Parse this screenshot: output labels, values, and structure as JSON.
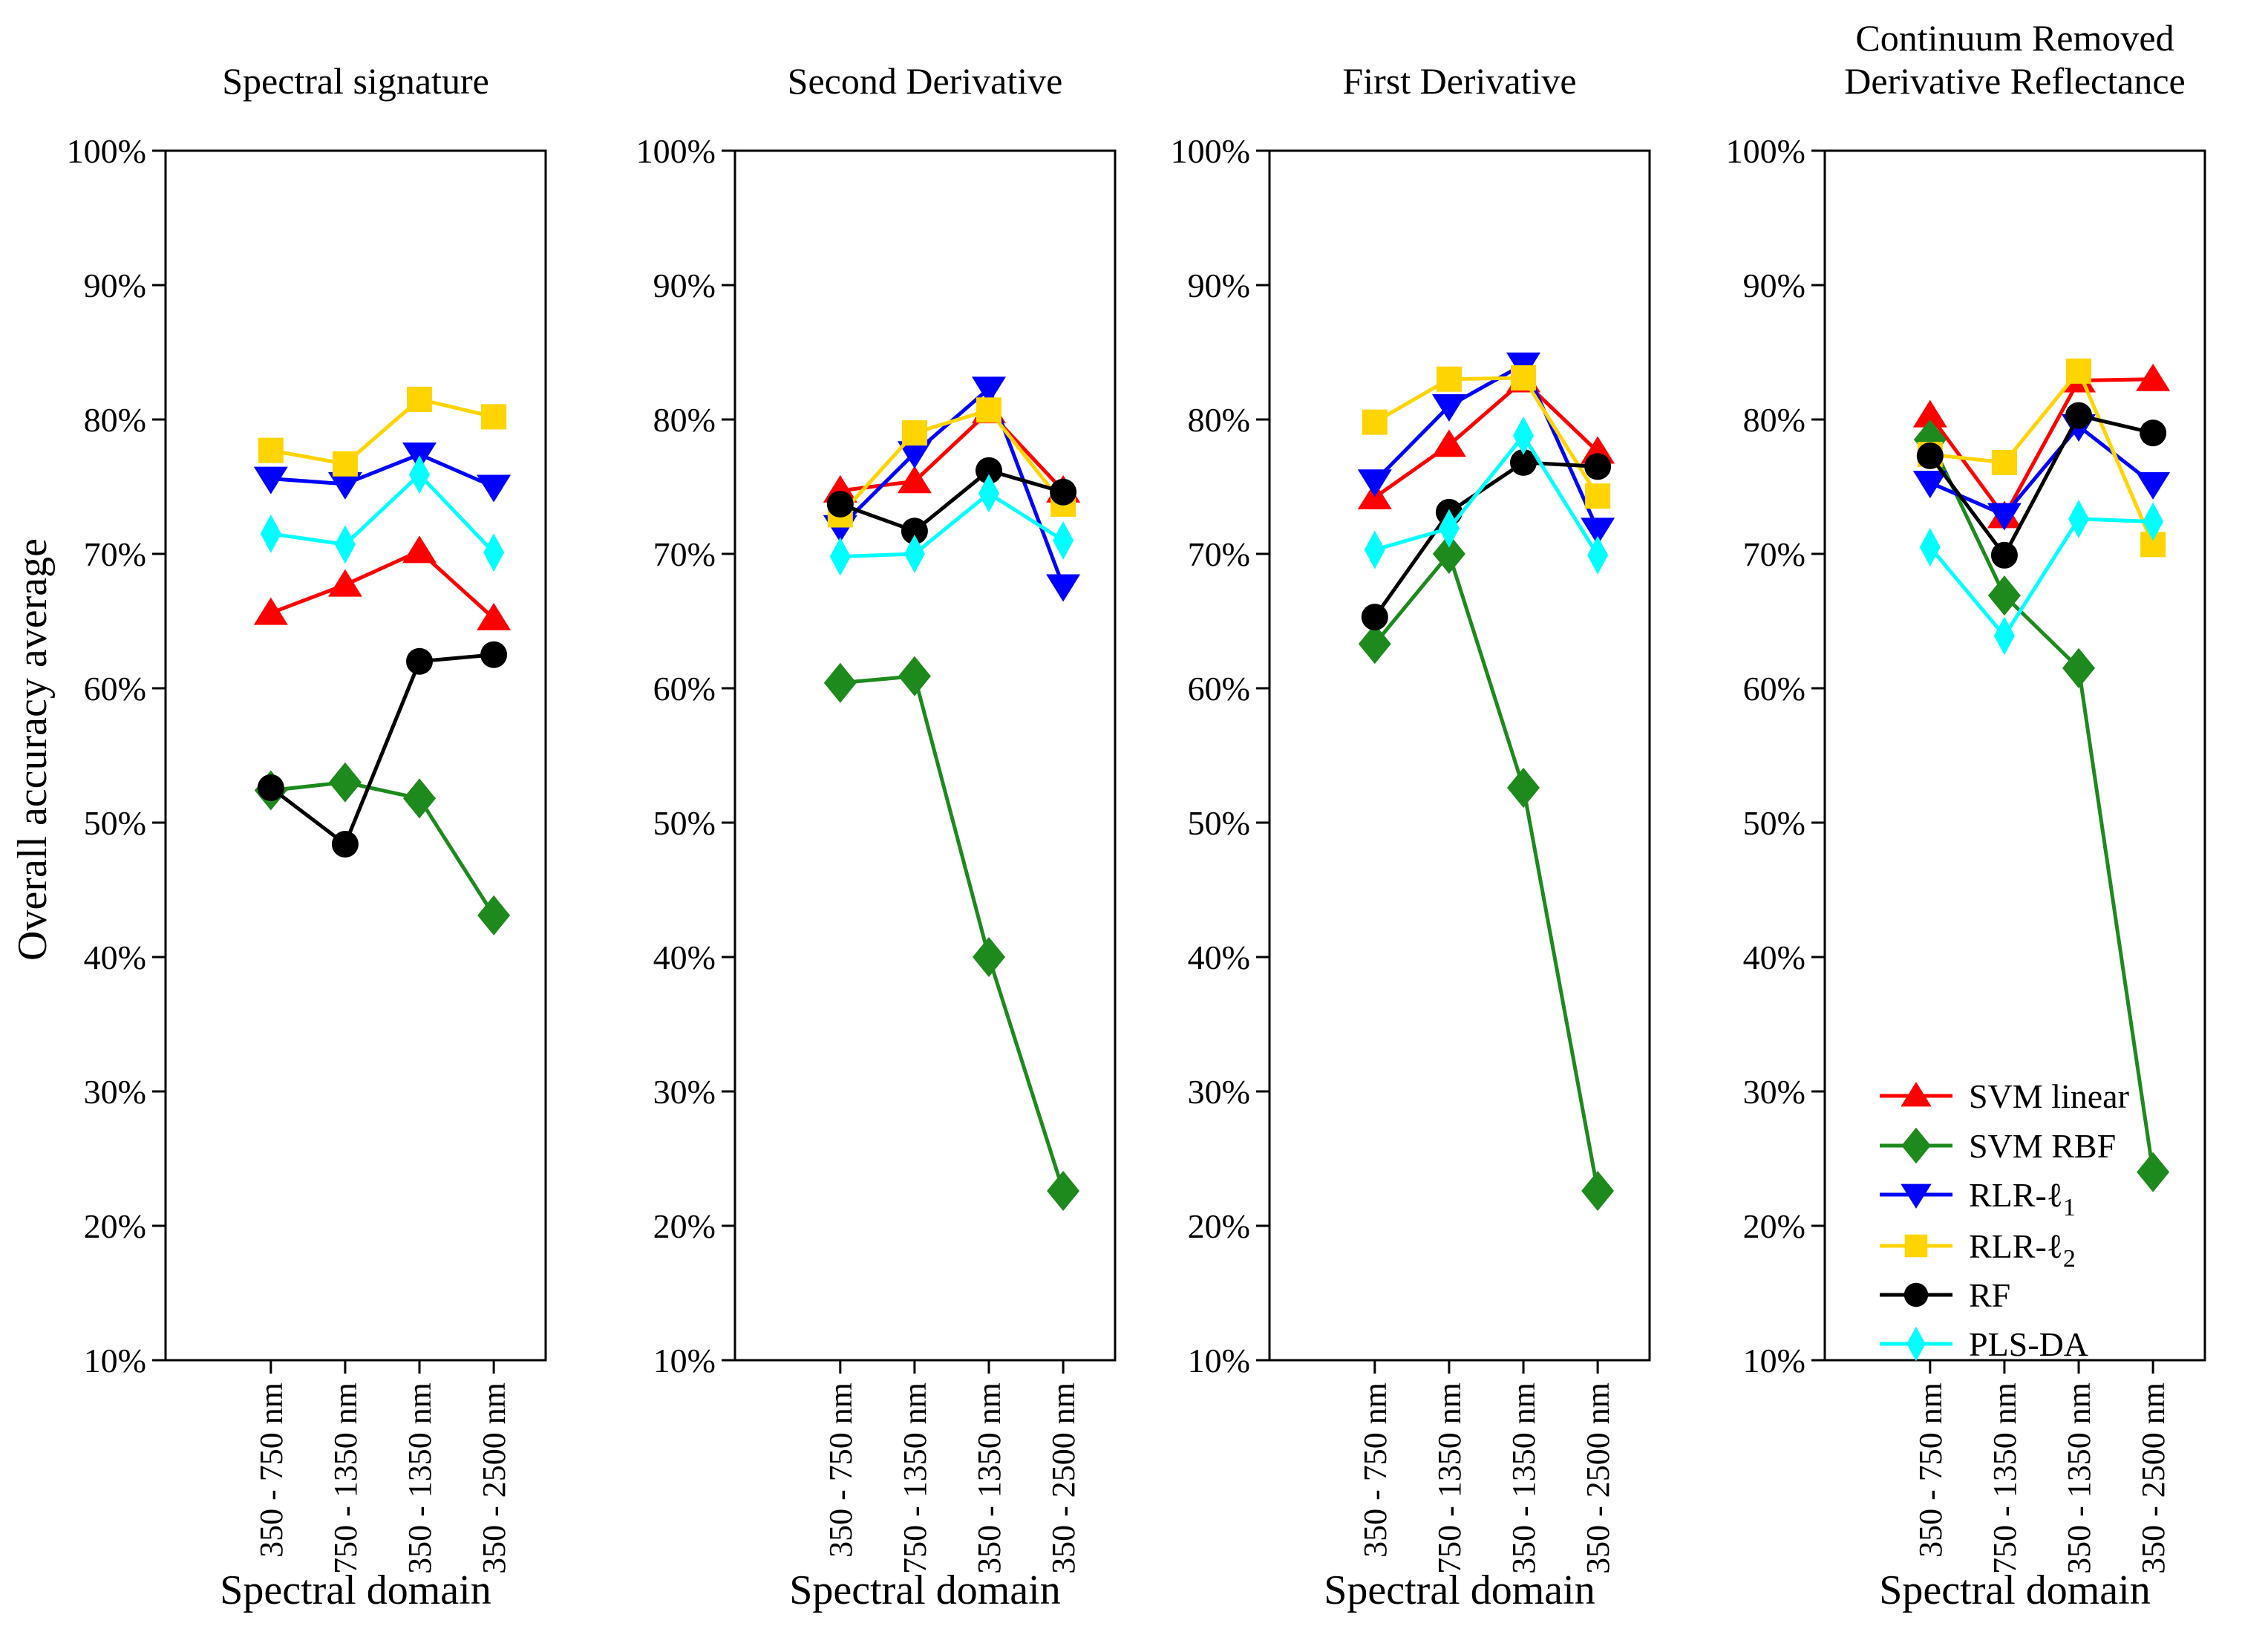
{
  "figure": {
    "ylabel": "Overall accuracy average",
    "xlabel": "Spectral domain",
    "background": "#ffffff",
    "axis_color": "#000000"
  },
  "categories": [
    "350 - 750 nm",
    "750 - 1350 nm",
    "350 - 1350 nm",
    "350 - 2500 nm"
  ],
  "y_ticks": [
    "100%",
    "90%",
    "80%",
    "70%",
    "60%",
    "50%",
    "40%",
    "30%",
    "20%",
    "10%"
  ],
  "series_meta": [
    {
      "name": "SVM linear",
      "color": "#ff0000",
      "marker": "triangle-up"
    },
    {
      "name": "SVM RBF",
      "color": "#1e8a1e",
      "marker": "diamond"
    },
    {
      "name": "RLR-ℓ1",
      "color": "#0000ff",
      "marker": "triangle-down"
    },
    {
      "name": "RLR-ℓ2",
      "color": "#ffd400",
      "marker": "square"
    },
    {
      "name": "RF",
      "color": "#000000",
      "marker": "circle"
    },
    {
      "name": "PLS-DA",
      "color": "#00ffff",
      "marker": "thin-diamond"
    }
  ],
  "legend": {
    "location": "lower right panel",
    "entries": [
      "SVM linear",
      "SVM RBF",
      "RLR-ℓ1",
      "RLR-ℓ2",
      "RF",
      "PLS-DA"
    ]
  },
  "chart_data": [
    {
      "type": "line",
      "title": "Spectral signature",
      "xlabel": "Spectral domain",
      "ylabel": "Overall accuracy average",
      "ylim": [
        10,
        100
      ],
      "categories": [
        "350 - 750 nm",
        "750 - 1350 nm",
        "350 - 1350 nm",
        "350 - 2500 nm"
      ],
      "series": [
        {
          "name": "SVM linear",
          "values": [
            65.6,
            67.7,
            70.2,
            65.2
          ]
        },
        {
          "name": "SVM RBF",
          "values": [
            52.4,
            53.0,
            51.8,
            43.1
          ]
        },
        {
          "name": "RLR-ℓ1",
          "values": [
            75.6,
            75.2,
            77.4,
            75.0
          ]
        },
        {
          "name": "RLR-ℓ2",
          "values": [
            77.7,
            76.7,
            81.5,
            80.2
          ]
        },
        {
          "name": "RF",
          "values": [
            52.6,
            48.4,
            62.0,
            62.5
          ]
        },
        {
          "name": "PLS-DA",
          "values": [
            71.5,
            70.7,
            75.9,
            70.1
          ]
        }
      ]
    },
    {
      "type": "line",
      "title": "Second Derivative",
      "xlabel": "Spectral domain",
      "ylim": [
        10,
        100
      ],
      "categories": [
        "350 - 750 nm",
        "750 - 1350 nm",
        "350 - 1350 nm",
        "350 - 2500 nm"
      ],
      "series": [
        {
          "name": "SVM linear",
          "values": [
            74.7,
            75.4,
            80.6,
            74.7
          ]
        },
        {
          "name": "SVM RBF",
          "values": [
            60.4,
            60.9,
            40.0,
            22.6
          ]
        },
        {
          "name": "RLR-ℓ1",
          "values": [
            72.0,
            77.5,
            82.3,
            67.6
          ]
        },
        {
          "name": "RLR-ℓ2",
          "values": [
            72.9,
            79.0,
            80.7,
            73.7
          ]
        },
        {
          "name": "RF",
          "values": [
            73.7,
            71.7,
            76.2,
            74.6
          ]
        },
        {
          "name": "PLS-DA",
          "values": [
            69.8,
            70.0,
            74.5,
            71.0
          ]
        }
      ]
    },
    {
      "type": "line",
      "title": "First Derivative",
      "xlabel": "Spectral domain",
      "ylim": [
        10,
        100
      ],
      "categories": [
        "350 - 750 nm",
        "750 - 1350 nm",
        "350 - 1350 nm",
        "350 - 2500 nm"
      ],
      "series": [
        {
          "name": "SVM linear",
          "values": [
            74.2,
            78.1,
            82.9,
            77.6
          ]
        },
        {
          "name": "SVM RBF",
          "values": [
            63.3,
            70.0,
            52.6,
            22.6
          ]
        },
        {
          "name": "RLR-ℓ1",
          "values": [
            75.4,
            81.0,
            84.1,
            71.8
          ]
        },
        {
          "name": "RLR-ℓ2",
          "values": [
            79.8,
            83.0,
            83.1,
            74.3
          ]
        },
        {
          "name": "RF",
          "values": [
            65.3,
            73.1,
            76.8,
            76.5
          ]
        },
        {
          "name": "PLS-DA",
          "values": [
            70.3,
            71.9,
            78.8,
            69.9
          ]
        }
      ]
    },
    {
      "type": "line",
      "title": "Continuum Removed Derivative Reflectance",
      "title_lines": [
        "Continuum Removed",
        "Derivative Reflectance"
      ],
      "xlabel": "Spectral domain",
      "ylim": [
        10,
        100
      ],
      "categories": [
        "350 - 750 nm",
        "750 - 1350 nm",
        "350 - 1350 nm",
        "350 - 2500 nm"
      ],
      "series": [
        {
          "name": "SVM linear",
          "values": [
            80.3,
            72.8,
            82.9,
            83.0
          ]
        },
        {
          "name": "SVM RBF",
          "values": [
            78.5,
            66.9,
            61.5,
            24.0
          ]
        },
        {
          "name": "RLR-ℓ1",
          "values": [
            75.3,
            72.9,
            79.5,
            75.2
          ]
        },
        {
          "name": "RLR-ℓ2",
          "values": [
            77.4,
            76.8,
            83.6,
            70.7
          ]
        },
        {
          "name": "RF",
          "values": [
            77.3,
            69.9,
            80.3,
            79.0
          ]
        },
        {
          "name": "PLS-DA",
          "values": [
            70.5,
            63.9,
            72.6,
            72.4
          ]
        }
      ]
    }
  ]
}
